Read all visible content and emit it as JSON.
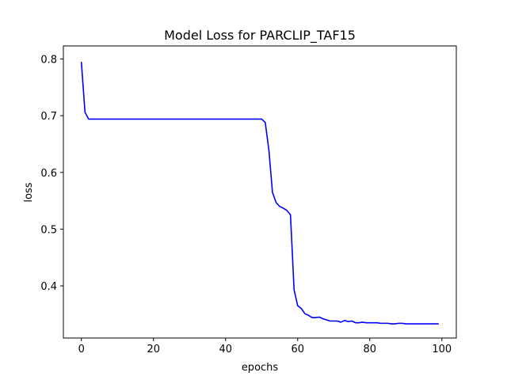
{
  "chart_data": {
    "type": "line",
    "title": "Model Loss for PARCLIP_TAF15",
    "xlabel": "epochs",
    "ylabel": "loss",
    "xlim": [
      -5,
      104
    ],
    "ylim": [
      0.308,
      0.823
    ],
    "xticks": [
      0,
      20,
      40,
      60,
      80,
      100
    ],
    "yticks": [
      0.4,
      0.5,
      0.6,
      0.7,
      0.8
    ],
    "xtick_labels": [
      "0",
      "20",
      "40",
      "60",
      "80",
      "100"
    ],
    "ytick_labels": [
      "0.4",
      "0.5",
      "0.6",
      "0.7",
      "0.8"
    ],
    "grid": false,
    "series": [
      {
        "color": "#0000ff",
        "x": [
          0,
          1,
          2,
          3,
          4,
          5,
          6,
          7,
          8,
          9,
          10,
          11,
          12,
          13,
          14,
          15,
          16,
          17,
          18,
          19,
          20,
          21,
          22,
          23,
          24,
          25,
          26,
          27,
          28,
          29,
          30,
          31,
          32,
          33,
          34,
          35,
          36,
          37,
          38,
          39,
          40,
          41,
          42,
          43,
          44,
          45,
          46,
          47,
          48,
          49,
          50,
          51,
          52,
          53,
          54,
          55,
          56,
          57,
          58,
          59,
          60,
          61,
          62,
          63,
          64,
          65,
          66,
          67,
          68,
          69,
          70,
          71,
          72,
          73,
          74,
          75,
          76,
          77,
          78,
          79,
          80,
          81,
          82,
          83,
          84,
          85,
          86,
          87,
          88,
          89,
          90,
          91,
          92,
          93,
          94,
          95,
          96,
          97,
          98,
          99
        ],
        "values": [
          0.794,
          0.706,
          0.694,
          0.694,
          0.694,
          0.694,
          0.694,
          0.694,
          0.694,
          0.694,
          0.694,
          0.694,
          0.694,
          0.694,
          0.694,
          0.694,
          0.694,
          0.694,
          0.694,
          0.694,
          0.694,
          0.694,
          0.694,
          0.694,
          0.694,
          0.694,
          0.694,
          0.694,
          0.694,
          0.694,
          0.694,
          0.694,
          0.694,
          0.694,
          0.694,
          0.694,
          0.694,
          0.694,
          0.694,
          0.694,
          0.694,
          0.694,
          0.694,
          0.694,
          0.694,
          0.694,
          0.694,
          0.694,
          0.694,
          0.694,
          0.694,
          0.688,
          0.64,
          0.565,
          0.547,
          0.54,
          0.537,
          0.533,
          0.525,
          0.393,
          0.365,
          0.36,
          0.351,
          0.348,
          0.344,
          0.344,
          0.345,
          0.342,
          0.34,
          0.338,
          0.338,
          0.338,
          0.336,
          0.339,
          0.337,
          0.338,
          0.335,
          0.335,
          0.336,
          0.335,
          0.335,
          0.335,
          0.335,
          0.334,
          0.334,
          0.334,
          0.333,
          0.333,
          0.334,
          0.334,
          0.333,
          0.333,
          0.333,
          0.333,
          0.333,
          0.333,
          0.333,
          0.333,
          0.333,
          0.333
        ]
      }
    ]
  }
}
